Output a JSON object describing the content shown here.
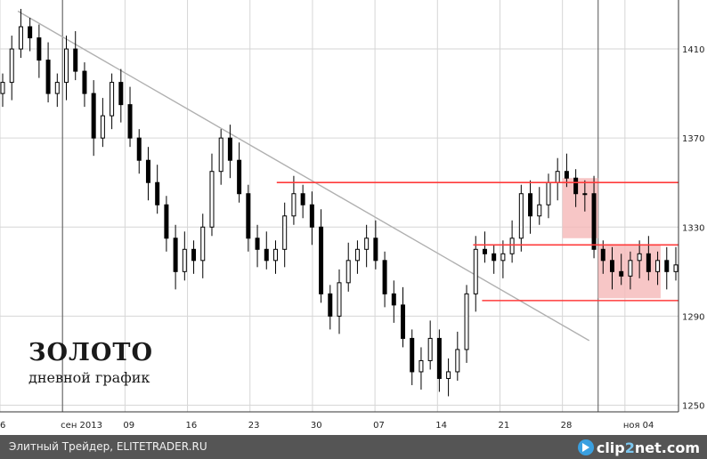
{
  "chart_data": {
    "type": "candlestick",
    "title": "ЗОЛОТО",
    "subtitle": "дневной график",
    "xlabel": "",
    "ylabel": "",
    "ylim": [
      1247,
      1432
    ],
    "yticks": [
      1250,
      1290,
      1330,
      1370,
      1410
    ],
    "xlim": [
      "2013-08-26",
      "2013-11-10"
    ],
    "xticks": [
      {
        "date": "2013-08-26",
        "label": "6"
      },
      {
        "date": "2013-09-02",
        "label": "сен 2013"
      },
      {
        "date": "2013-09-09",
        "label": "09"
      },
      {
        "date": "2013-09-16",
        "label": "16"
      },
      {
        "date": "2013-09-23",
        "label": "23"
      },
      {
        "date": "2013-09-30",
        "label": "30"
      },
      {
        "date": "2013-10-07",
        "label": "07"
      },
      {
        "date": "2013-10-14",
        "label": "14"
      },
      {
        "date": "2013-10-21",
        "label": "21"
      },
      {
        "date": "2013-10-28",
        "label": "28"
      },
      {
        "date": "2013-11-04",
        "label": "ноя 04"
      }
    ],
    "major_gridlines": [
      "2013-09-02",
      "2013-11-01"
    ],
    "grid": true,
    "close_series": [
      1395,
      1410,
      1420,
      1415,
      1405,
      1390,
      1395,
      1410,
      1400,
      1390,
      1370,
      1380,
      1395,
      1385,
      1370,
      1360,
      1350,
      1340,
      1325,
      1310,
      1320,
      1315,
      1330,
      1355,
      1370,
      1360,
      1345,
      1325,
      1320,
      1315,
      1320,
      1335,
      1345,
      1340,
      1330,
      1300,
      1290,
      1305,
      1315,
      1320,
      1325,
      1315,
      1300,
      1295,
      1280,
      1265,
      1270,
      1280,
      1262,
      1265,
      1275,
      1300,
      1320,
      1318,
      1315,
      1318,
      1325,
      1345,
      1335,
      1340,
      1350,
      1355,
      1352,
      1345,
      1345,
      1320,
      1315,
      1310,
      1308,
      1315,
      1318,
      1310,
      1315,
      1310,
      1313
    ],
    "resistance_lines": [
      {
        "from": "2013-09-26",
        "to": "2013-11-10",
        "value": 1350
      },
      {
        "from": "2013-10-18",
        "to": "2013-11-10",
        "value": 1322
      },
      {
        "from": "2013-10-19",
        "to": "2013-11-10",
        "value": 1297
      }
    ],
    "trendline": {
      "from": {
        "date": "2013-08-28",
        "value": 1427
      },
      "to": {
        "date": "2013-10-31",
        "value": 1279
      }
    },
    "shaded_zones": [
      {
        "from": "2013-10-28",
        "to": "2013-11-01",
        "low": 1325,
        "high": 1352
      },
      {
        "from": "2013-11-01",
        "to": "2013-11-08",
        "low": 1298,
        "high": 1322
      }
    ],
    "colors": {
      "accent": "#ff3b3b",
      "zone": "#f5b8b8",
      "trend": "#b0b0b0",
      "candle": "#000000"
    }
  },
  "footer": {
    "text": "Элитный Трейдер, ELITETRADER.RU",
    "logo_a": "clip",
    "logo_b": "2",
    "logo_c": "net",
    "logo_d": ".com"
  }
}
